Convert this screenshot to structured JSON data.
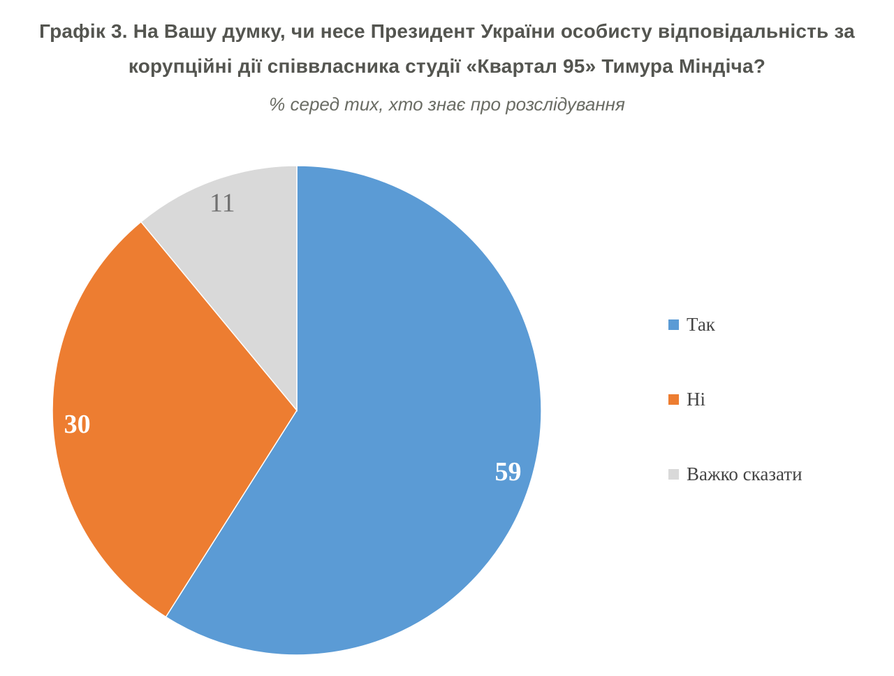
{
  "page": {
    "background": "#FFFFFF"
  },
  "styles": {
    "title_color": "#545550",
    "subtitle_color": "#6A6C64",
    "legend_text_color": "#444444"
  },
  "chart_data": {
    "type": "pie",
    "title": "Графік 3. На Вашу думку, чи несе Президент України особисту відповідальність за корупційні дії співвласника студії «Квартал 95» Тимура Міндіча?",
    "title_lines": [
      "Графік 3. На Вашу думку, чи несе Президент України особисту відповідальність за",
      "корупційні дії співвласника студії «Квартал 95» Тимура Міндіча?"
    ],
    "subtitle": "% серед тих, хто знає про розслідування",
    "unit": "%",
    "direction": "clockwise",
    "start_angle_deg": 0,
    "legend_position": "right",
    "grid": false,
    "categories": [
      "Так",
      "Ні",
      "Важко сказати"
    ],
    "values": [
      59,
      30,
      11
    ],
    "slices": [
      {
        "label": "Так",
        "value": 59,
        "color": "#5B9BD5",
        "label_color": "#FFFFFF",
        "label_bold": true
      },
      {
        "label": "Ні",
        "value": 30,
        "color": "#ED7D31",
        "label_color": "#FFFFFF",
        "label_bold": true
      },
      {
        "label": "Важко сказати",
        "value": 11,
        "color": "#D9D9D9",
        "label_color": "#707070",
        "label_bold": false
      }
    ]
  }
}
